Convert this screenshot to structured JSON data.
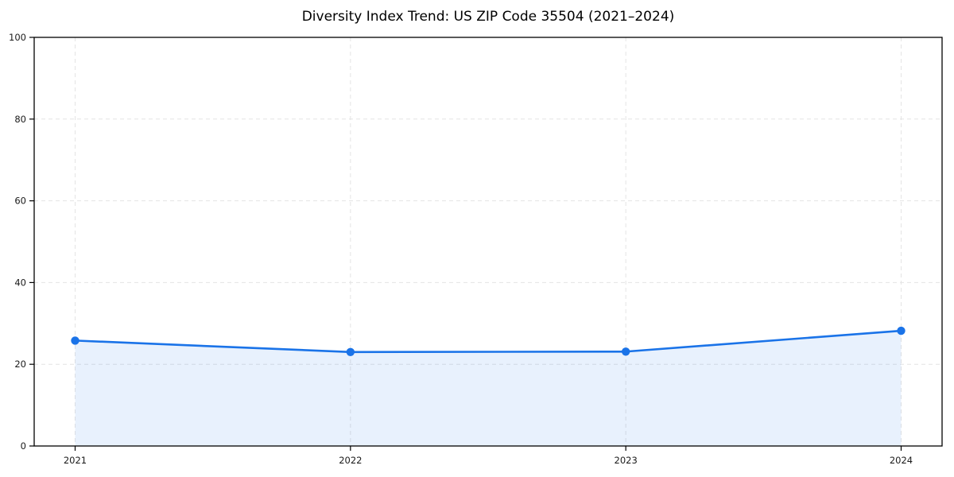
{
  "chart_data": {
    "type": "line",
    "title": "Diversity Index Trend: US ZIP Code 35504 (2021–2024)",
    "xlabel": "",
    "ylabel": "",
    "categories": [
      "2021",
      "2022",
      "2023",
      "2024"
    ],
    "series": [
      {
        "name": "Diversity Index",
        "values": [
          25.8,
          23.0,
          23.1,
          28.2
        ]
      }
    ],
    "ylim": [
      0,
      100
    ],
    "yticks": [
      0,
      20,
      40,
      60,
      80,
      100
    ],
    "grid": true,
    "grid_style": "dashed",
    "legend_position": "none",
    "marker": "circle",
    "area_fill": true,
    "colors": {
      "line": "#1a73e8",
      "marker": "#1a73e8",
      "fill": "rgba(26,115,232,0.10)",
      "gridline": "#e4e4e4",
      "axis": "#000000",
      "tick_text": "#1a1a1a",
      "background": "#ffffff"
    }
  }
}
